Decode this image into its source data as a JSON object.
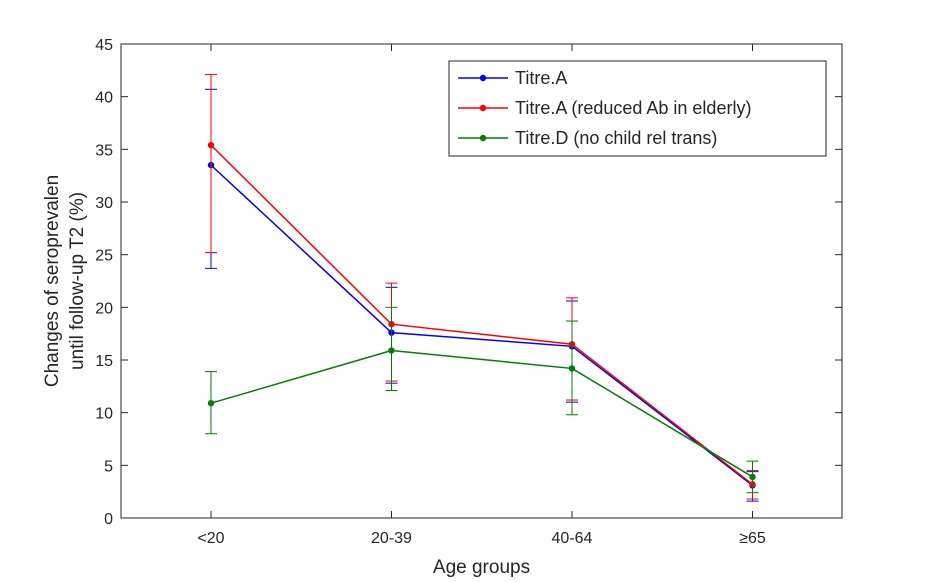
{
  "chart_data": {
    "type": "line",
    "xlabel": "Age groups",
    "ylabel": [
      "Changes of seroprevalen",
      "until follow-up T2 (%)"
    ],
    "categories": [
      "<20",
      "20-39",
      "40-64",
      "≥65"
    ],
    "ylim": [
      0,
      45
    ],
    "yticks": [
      0,
      5,
      10,
      15,
      20,
      25,
      30,
      35,
      40,
      45
    ],
    "grid": false,
    "legend_position": "top-right",
    "series": [
      {
        "name": "Titre.A",
        "color": "#0000ff",
        "values": [
          33.5,
          17.6,
          16.3,
          3.1
        ],
        "lower": [
          23.7,
          12.8,
          11.0,
          1.6
        ],
        "upper": [
          40.7,
          21.9,
          20.6,
          4.4
        ]
      },
      {
        "name": "Titre.A (reduced Ab in elderly)",
        "color": "#ff0000",
        "values": [
          35.4,
          18.4,
          16.5,
          3.2
        ],
        "lower": [
          25.2,
          13.0,
          11.2,
          1.8
        ],
        "upper": [
          42.1,
          22.3,
          20.9,
          4.5
        ]
      },
      {
        "name": "Titre.D (no child rel trans)",
        "color": "#008000",
        "values": [
          10.9,
          15.9,
          14.2,
          3.9
        ],
        "lower": [
          8.0,
          12.1,
          9.8,
          2.4
        ],
        "upper": [
          13.9,
          20.0,
          18.7,
          5.4
        ]
      }
    ]
  }
}
